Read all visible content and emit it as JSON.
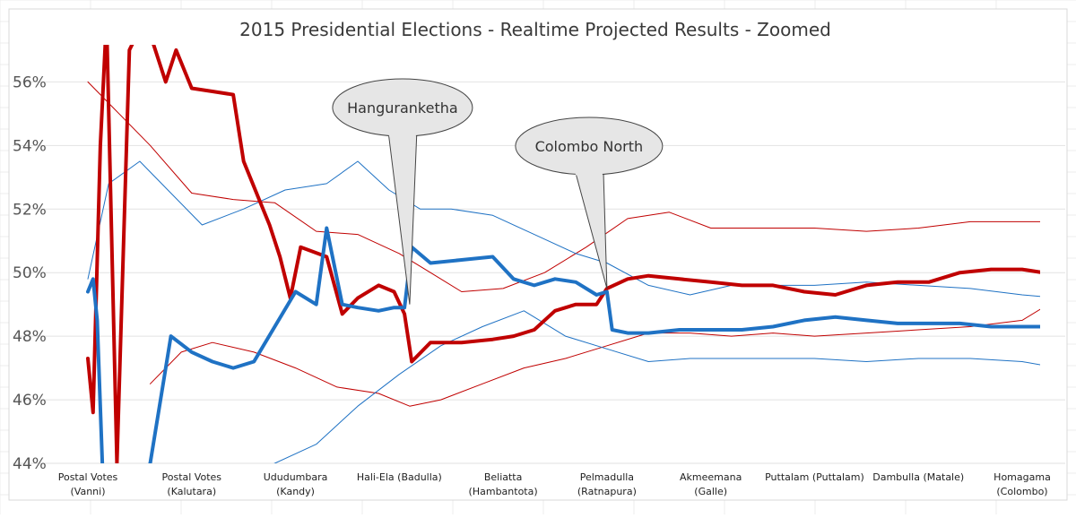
{
  "chart_data": {
    "type": "line",
    "title": "2015 Presidential Elections - Realtime Projected Results - Zoomed",
    "xlabel": "",
    "ylabel": "",
    "ylim": [
      44,
      56.8
    ],
    "yticks": [
      "44%",
      "46%",
      "48%",
      "50%",
      "52%",
      "54%",
      "56%"
    ],
    "categories": [
      [
        "Postal Votes",
        "(Vanni)"
      ],
      [
        "Postal Votes",
        "(Kalutara)"
      ],
      [
        "Ududumbara",
        "(Kandy)"
      ],
      [
        "Hali-Ela (Badulla)"
      ],
      [
        "Beliatta",
        "(Hambantota)"
      ],
      [
        "Pelmadulla",
        "(Ratnapura)"
      ],
      [
        "Akmeemana",
        "(Galle)"
      ],
      [
        "Puttalam (Puttalam)"
      ],
      [
        "Dambulla (Matale)"
      ],
      [
        "Homagama",
        "(Colombo)"
      ]
    ],
    "series_colors": {
      "red": "#c00000",
      "blue": "#1f72c4"
    },
    "series": [
      {
        "key": "red",
        "width": 4,
        "points": [
          [
            0,
            47.3
          ],
          [
            0.05,
            45.6
          ],
          [
            0.12,
            54
          ],
          [
            0.18,
            58
          ],
          [
            0.28,
            44
          ],
          [
            0.4,
            57
          ],
          [
            0.55,
            58
          ],
          [
            0.75,
            56
          ],
          [
            0.85,
            57
          ],
          [
            1.0,
            55.8
          ],
          [
            1.2,
            55.7
          ],
          [
            1.4,
            55.6
          ],
          [
            1.5,
            53.5
          ],
          [
            1.65,
            52.3
          ],
          [
            1.75,
            51.5
          ],
          [
            1.85,
            50.5
          ],
          [
            1.95,
            49.2
          ],
          [
            2.05,
            50.8
          ],
          [
            2.3,
            50.5
          ],
          [
            2.45,
            48.7
          ],
          [
            2.6,
            49.2
          ],
          [
            2.8,
            49.6
          ],
          [
            2.95,
            49.4
          ],
          [
            3.05,
            48.7
          ],
          [
            3.12,
            47.2
          ],
          [
            3.3,
            47.8
          ],
          [
            3.6,
            47.8
          ],
          [
            3.9,
            47.9
          ],
          [
            4.1,
            48.0
          ],
          [
            4.3,
            48.2
          ],
          [
            4.5,
            48.8
          ],
          [
            4.7,
            49.0
          ],
          [
            4.9,
            49.0
          ],
          [
            5.0,
            49.5
          ],
          [
            5.2,
            49.8
          ],
          [
            5.4,
            49.9
          ],
          [
            5.7,
            49.8
          ],
          [
            6.0,
            49.7
          ],
          [
            6.3,
            49.6
          ],
          [
            6.6,
            49.6
          ],
          [
            6.9,
            49.4
          ],
          [
            7.2,
            49.3
          ],
          [
            7.5,
            49.6
          ],
          [
            7.8,
            49.7
          ],
          [
            8.1,
            49.7
          ],
          [
            8.4,
            50.0
          ],
          [
            8.7,
            50.1
          ],
          [
            9.0,
            50.1
          ],
          [
            9.2,
            50.0
          ],
          [
            9.35,
            50.4
          ]
        ]
      },
      {
        "key": "blue",
        "width": 4,
        "points": [
          [
            0,
            49.4
          ],
          [
            0.05,
            49.8
          ],
          [
            0.09,
            48.5
          ],
          [
            0.15,
            43
          ],
          [
            0.28,
            42
          ],
          [
            0.45,
            43
          ],
          [
            0.6,
            44
          ],
          [
            0.8,
            48.0
          ],
          [
            1.0,
            47.5
          ],
          [
            1.2,
            47.2
          ],
          [
            1.4,
            47.0
          ],
          [
            1.6,
            47.2
          ],
          [
            1.8,
            48.3
          ],
          [
            2.0,
            49.4
          ],
          [
            2.2,
            49.0
          ],
          [
            2.3,
            51.4
          ],
          [
            2.45,
            49.0
          ],
          [
            2.6,
            48.9
          ],
          [
            2.8,
            48.8
          ],
          [
            2.95,
            48.9
          ],
          [
            3.05,
            48.9
          ],
          [
            3.12,
            50.8
          ],
          [
            3.3,
            50.3
          ],
          [
            3.6,
            50.4
          ],
          [
            3.9,
            50.5
          ],
          [
            4.1,
            49.8
          ],
          [
            4.3,
            49.6
          ],
          [
            4.5,
            49.8
          ],
          [
            4.7,
            49.7
          ],
          [
            4.9,
            49.3
          ],
          [
            5.0,
            49.4
          ],
          [
            5.05,
            48.2
          ],
          [
            5.2,
            48.1
          ],
          [
            5.4,
            48.1
          ],
          [
            5.7,
            48.2
          ],
          [
            6.0,
            48.2
          ],
          [
            6.3,
            48.2
          ],
          [
            6.6,
            48.3
          ],
          [
            6.9,
            48.5
          ],
          [
            7.2,
            48.6
          ],
          [
            7.5,
            48.5
          ],
          [
            7.8,
            48.4
          ],
          [
            8.1,
            48.4
          ],
          [
            8.4,
            48.4
          ],
          [
            8.7,
            48.3
          ],
          [
            9.0,
            48.3
          ],
          [
            9.2,
            48.3
          ],
          [
            9.35,
            48.1
          ]
        ]
      },
      {
        "key": "red",
        "width": 1,
        "points": [
          [
            0,
            56
          ],
          [
            0.3,
            55
          ],
          [
            0.6,
            54
          ],
          [
            1.0,
            52.5
          ],
          [
            1.4,
            52.3
          ],
          [
            1.8,
            52.2
          ],
          [
            2.2,
            51.3
          ],
          [
            2.6,
            51.2
          ],
          [
            3.0,
            50.6
          ],
          [
            3.3,
            50.0
          ],
          [
            3.6,
            49.4
          ],
          [
            4.0,
            49.5
          ],
          [
            4.4,
            50.0
          ],
          [
            4.8,
            50.8
          ],
          [
            5.2,
            51.7
          ],
          [
            5.6,
            51.9
          ],
          [
            6.0,
            51.4
          ],
          [
            6.5,
            51.4
          ],
          [
            7.0,
            51.4
          ],
          [
            7.5,
            51.3
          ],
          [
            8.0,
            51.4
          ],
          [
            8.5,
            51.6
          ],
          [
            9.0,
            51.6
          ],
          [
            9.35,
            51.6
          ]
        ]
      },
      {
        "key": "red",
        "width": 1,
        "points": [
          [
            0.6,
            46.5
          ],
          [
            0.9,
            47.5
          ],
          [
            1.2,
            47.8
          ],
          [
            1.6,
            47.5
          ],
          [
            2.0,
            47.0
          ],
          [
            2.4,
            46.4
          ],
          [
            2.8,
            46.2
          ],
          [
            3.1,
            45.8
          ],
          [
            3.4,
            46.0
          ],
          [
            3.8,
            46.5
          ],
          [
            4.2,
            47.0
          ],
          [
            4.6,
            47.3
          ],
          [
            5.0,
            47.7
          ],
          [
            5.4,
            48.1
          ],
          [
            5.8,
            48.1
          ],
          [
            6.2,
            48.0
          ],
          [
            6.6,
            48.1
          ],
          [
            7.0,
            48.0
          ],
          [
            7.5,
            48.1
          ],
          [
            8.0,
            48.2
          ],
          [
            8.5,
            48.3
          ],
          [
            9.0,
            48.5
          ],
          [
            9.35,
            49.2
          ]
        ]
      },
      {
        "key": "blue",
        "width": 1,
        "points": [
          [
            0,
            49.8
          ],
          [
            0.2,
            52.8
          ],
          [
            0.5,
            53.5
          ],
          [
            0.8,
            52.5
          ],
          [
            1.1,
            51.5
          ],
          [
            1.5,
            52.0
          ],
          [
            1.9,
            52.6
          ],
          [
            2.3,
            52.8
          ],
          [
            2.6,
            53.5
          ],
          [
            2.9,
            52.6
          ],
          [
            3.2,
            52.0
          ],
          [
            3.5,
            52.0
          ],
          [
            3.9,
            51.8
          ],
          [
            4.3,
            51.2
          ],
          [
            4.7,
            50.6
          ],
          [
            5.0,
            50.3
          ],
          [
            5.4,
            49.6
          ],
          [
            5.8,
            49.3
          ],
          [
            6.2,
            49.6
          ],
          [
            6.6,
            49.6
          ],
          [
            7.0,
            49.6
          ],
          [
            7.5,
            49.7
          ],
          [
            8.0,
            49.6
          ],
          [
            8.5,
            49.5
          ],
          [
            9.0,
            49.3
          ],
          [
            9.35,
            49.2
          ]
        ]
      },
      {
        "key": "blue",
        "width": 1,
        "points": [
          [
            1.5,
            43.5
          ],
          [
            1.8,
            44.0
          ],
          [
            2.2,
            44.6
          ],
          [
            2.6,
            45.8
          ],
          [
            3.0,
            46.8
          ],
          [
            3.4,
            47.7
          ],
          [
            3.8,
            48.3
          ],
          [
            4.2,
            48.8
          ],
          [
            4.6,
            48.0
          ],
          [
            5.0,
            47.6
          ],
          [
            5.4,
            47.2
          ],
          [
            5.8,
            47.3
          ],
          [
            6.2,
            47.3
          ],
          [
            6.6,
            47.3
          ],
          [
            7.0,
            47.3
          ],
          [
            7.5,
            47.2
          ],
          [
            8.0,
            47.3
          ],
          [
            8.5,
            47.3
          ],
          [
            9.0,
            47.2
          ],
          [
            9.35,
            47.0
          ]
        ]
      }
    ],
    "annotations": [
      {
        "text": "Hanguranketha",
        "tip_x": 3.1,
        "tip_y": 49.0
      },
      {
        "text": "Colombo North",
        "tip_x": 5.0,
        "tip_y": 49.5
      }
    ],
    "grid": true,
    "legend": "none"
  }
}
